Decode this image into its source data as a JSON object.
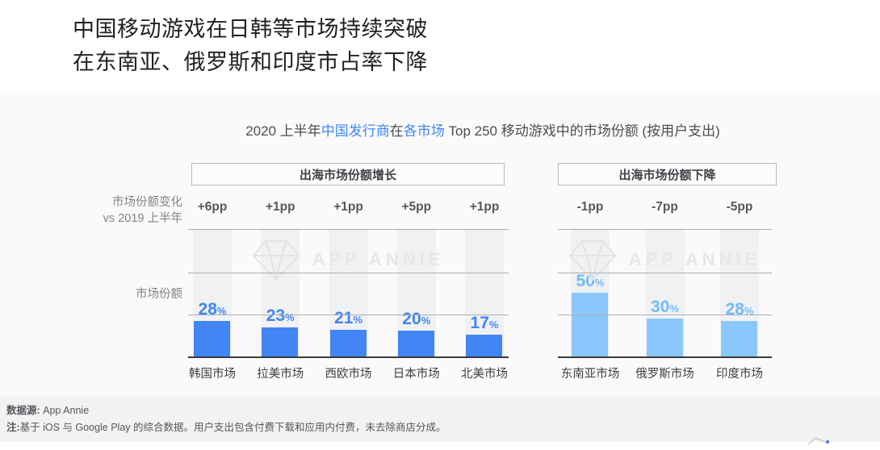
{
  "page_title": {
    "line1": "中国移动游戏在日韩等市场持续突破",
    "line2": "在东南亚、俄罗斯和印度市占率下降"
  },
  "chart": {
    "title_segments": [
      {
        "text": "2020 上半年",
        "blue": false
      },
      {
        "text": "中国发行商",
        "blue": true
      },
      {
        "text": "在",
        "blue": false
      },
      {
        "text": "各市场",
        "blue": true
      },
      {
        "text": " Top 250 移动游戏中的市场份额 (按用户支出)",
        "blue": false
      }
    ],
    "row_label_change_line1": "市场份额变化",
    "row_label_change_line2": "vs 2019 上半年",
    "row_label_share": "市场份额",
    "watermark_text": "APP ANNIE"
  },
  "chart_data": {
    "type": "bar",
    "title": "2020 上半年中国发行商在各市场 Top 250 移动游戏中的市场份额 (按用户支出)",
    "unit": "%",
    "ylim": [
      0,
      100
    ],
    "gridlines_pct": [
      0,
      33.3,
      66.7,
      100
    ],
    "groups": [
      {
        "header": "出海市场份额增长",
        "bar_color": "#4285f4",
        "value_color": "#4285f4",
        "categories": [
          "韩国市场",
          "拉美市场",
          "西欧市场",
          "日本市场",
          "北美市场"
        ],
        "values": [
          28,
          23,
          21,
          20,
          17
        ],
        "changes": [
          "+6pp",
          "+1pp",
          "+1pp",
          "+5pp",
          "+1pp"
        ]
      },
      {
        "header": "出海市场份额下降",
        "bar_color": "#8ac7fd",
        "value_color": "#70bbfa",
        "categories": [
          "东南亚市场",
          "俄罗斯市场",
          "印度市场"
        ],
        "values": [
          50,
          30,
          28
        ],
        "changes": [
          "-1pp",
          "-7pp",
          "-5pp"
        ]
      }
    ]
  },
  "footer": {
    "source_label": "数据源:",
    "source_value": " App Annie",
    "note_label": "注:",
    "note_text": "基于 iOS 与 Google Play 的综合数据。用户支出包含付费下载和应用内付费，未去除商店分成。"
  },
  "colors": {
    "accent_blue": "#4285f4",
    "light_blue": "#8ac7fd",
    "section_bg": "#fafafa",
    "stripe": "#f0f1f2",
    "footer_bg": "#f2f2f3"
  }
}
